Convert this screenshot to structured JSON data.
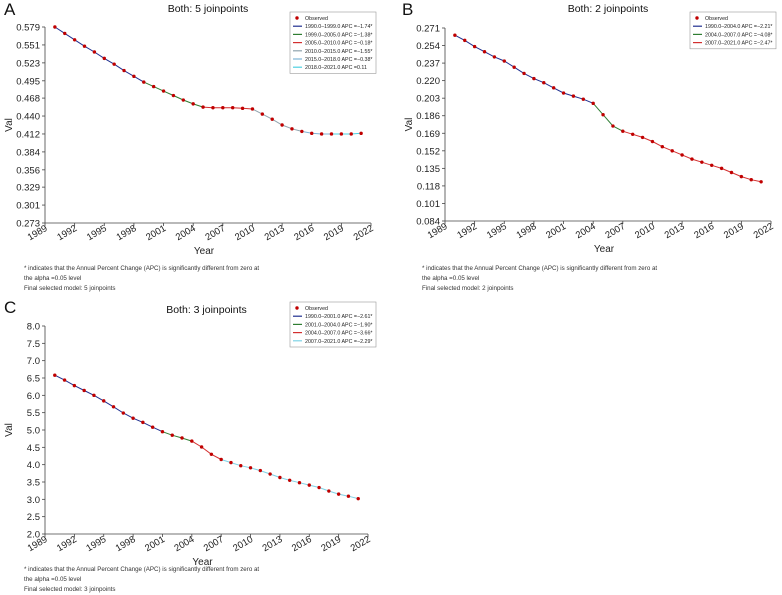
{
  "panels": [
    {
      "letter": "A",
      "note_1": "* indicates that the Annual Percent Change (APC) is significantly different from zero at",
      "note_2": "the alpha =0.05 level",
      "note_3": "Final selected model: 5 joinpoints"
    },
    {
      "letter": "B",
      "note_1": "* indicates that the Annual Percent Change (APC) is significantly different from zero at",
      "note_2": "the alpha =0.05 level",
      "note_3": "Final selected model: 2 joinpoints"
    },
    {
      "letter": "C",
      "note_1": "* indicates that the Annual Percent Change (APC) is significantly different from zero at",
      "note_2": "the alpha =0.05 level",
      "note_3": "Final selected model: 3 joinpoints"
    }
  ],
  "chart_data": [
    {
      "type": "line",
      "title": "Both: 5 joinpoints",
      "xlabel": "Year",
      "ylabel": "Val",
      "xlim": [
        1989,
        2022
      ],
      "xticks": [
        1989,
        1992,
        1995,
        1998,
        2001,
        2004,
        2007,
        2010,
        2013,
        2016,
        2019,
        2022
      ],
      "ylim": [
        0.273,
        0.579
      ],
      "yticks": [
        "0.273",
        "0.301",
        "0.329",
        "0.356",
        "0.384",
        "0.412",
        "0.440",
        "0.468",
        "0.495",
        "0.523",
        "0.551",
        "0.579"
      ],
      "legend_position": "top-right",
      "observed_label": "Observed",
      "observed_color": "#c00000",
      "x": [
        1990,
        1991,
        1992,
        1993,
        1994,
        1995,
        1996,
        1997,
        1998,
        1999,
        2000,
        2001,
        2002,
        2003,
        2004,
        2005,
        2006,
        2007,
        2008,
        2009,
        2010,
        2011,
        2012,
        2013,
        2014,
        2015,
        2016,
        2017,
        2018,
        2019,
        2020,
        2021
      ],
      "observed": [
        0.579,
        0.569,
        0.559,
        0.549,
        0.54,
        0.53,
        0.521,
        0.511,
        0.502,
        0.493,
        0.486,
        0.479,
        0.472,
        0.465,
        0.459,
        0.454,
        0.453,
        0.453,
        0.453,
        0.452,
        0.451,
        0.443,
        0.435,
        0.426,
        0.42,
        0.416,
        0.413,
        0.412,
        0.412,
        0.412,
        0.412,
        0.413
      ],
      "segments": [
        {
          "name": "1990.0–1999.0 APC =−1.74*",
          "color": "#1f2f8f",
          "from": 1990,
          "to": 1999
        },
        {
          "name": "1999.0–2005.0 APC =−1.38*",
          "color": "#2e7d32",
          "from": 1999,
          "to": 2005
        },
        {
          "name": "2005.0–2010.0 APC =−0.18*",
          "color": "#d32f2f",
          "from": 2005,
          "to": 2010
        },
        {
          "name": "2010.0–2015.0 APC =−1.55*",
          "color": "#90a4ae",
          "from": 2010,
          "to": 2015
        },
        {
          "name": "2015.0–2018.0 APC =−0.38*",
          "color": "#7fb3d5",
          "from": 2015,
          "to": 2018
        },
        {
          "name": "2018.0–2021.0 APC =0.11",
          "color": "#4dd0e1",
          "from": 2018,
          "to": 2021
        }
      ]
    },
    {
      "type": "line",
      "title": "Both: 2 joinpoints",
      "xlabel": "Year",
      "ylabel": "Val",
      "xlim": [
        1989,
        2022
      ],
      "xticks": [
        1989,
        1992,
        1995,
        1998,
        2001,
        2004,
        2007,
        2010,
        2013,
        2016,
        2019,
        2022
      ],
      "ylim": [
        0.084,
        0.271
      ],
      "yticks": [
        "0.084",
        "0.101",
        "0.118",
        "0.135",
        "0.152",
        "0.169",
        "0.186",
        "0.203",
        "0.220",
        "0.237",
        "0.254",
        "0.271"
      ],
      "legend_position": "top-right",
      "observed_label": "Observed",
      "observed_color": "#c00000",
      "x": [
        1990,
        1991,
        1992,
        1993,
        1994,
        1995,
        1996,
        1997,
        1998,
        1999,
        2000,
        2001,
        2002,
        2003,
        2004,
        2005,
        2006,
        2007,
        2008,
        2009,
        2010,
        2011,
        2012,
        2013,
        2014,
        2015,
        2016,
        2017,
        2018,
        2019,
        2020,
        2021
      ],
      "observed": [
        0.264,
        0.259,
        0.253,
        0.248,
        0.243,
        0.239,
        0.233,
        0.227,
        0.222,
        0.218,
        0.213,
        0.208,
        0.205,
        0.202,
        0.198,
        0.187,
        0.176,
        0.171,
        0.168,
        0.165,
        0.161,
        0.156,
        0.152,
        0.148,
        0.144,
        0.141,
        0.138,
        0.135,
        0.131,
        0.127,
        0.124,
        0.122
      ],
      "segments": [
        {
          "name": "1990.0–2004.0 APC =−2.21*",
          "color": "#1f2f8f",
          "from": 1990,
          "to": 2004
        },
        {
          "name": "2004.0–2007.0 APC =−4.08*",
          "color": "#2e7d32",
          "from": 2004,
          "to": 2007
        },
        {
          "name": "2007.0–2021.0 APC =−2.47*",
          "color": "#d32f2f",
          "from": 2007,
          "to": 2021
        }
      ]
    },
    {
      "type": "line",
      "title": "Both: 3 joinpoints",
      "xlabel": "Year",
      "ylabel": "Val",
      "xlim": [
        1989,
        2022
      ],
      "xticks": [
        1989,
        1992,
        1995,
        1998,
        2001,
        2004,
        2007,
        2010,
        2013,
        2016,
        2019,
        2022
      ],
      "ylim": [
        2.0,
        8.0
      ],
      "yticks": [
        "2.0",
        "2.5",
        "3.0",
        "3.5",
        "4.0",
        "4.5",
        "5.0",
        "5.5",
        "6.0",
        "6.5",
        "7.0",
        "7.5",
        "8.0"
      ],
      "legend_position": "top-right",
      "observed_label": "Observed",
      "observed_color": "#c00000",
      "x": [
        1990,
        1991,
        1992,
        1993,
        1994,
        1995,
        1996,
        1997,
        1998,
        1999,
        2000,
        2001,
        2002,
        2003,
        2004,
        2005,
        2006,
        2007,
        2008,
        2009,
        2010,
        2011,
        2012,
        2013,
        2014,
        2015,
        2016,
        2017,
        2018,
        2019,
        2020,
        2021
      ],
      "observed": [
        6.58,
        6.44,
        6.28,
        6.14,
        6.0,
        5.84,
        5.67,
        5.49,
        5.34,
        5.22,
        5.08,
        4.95,
        4.85,
        4.77,
        4.68,
        4.51,
        4.3,
        4.15,
        4.06,
        3.97,
        3.91,
        3.83,
        3.73,
        3.63,
        3.55,
        3.48,
        3.41,
        3.34,
        3.24,
        3.15,
        3.09,
        3.02
      ],
      "segments": [
        {
          "name": "1990.0–2001.0 APC =−2.61*",
          "color": "#1f2f8f",
          "from": 1990,
          "to": 2001
        },
        {
          "name": "2001.0–2004.0 APC =−1.90*",
          "color": "#2e7d32",
          "from": 2001,
          "to": 2004
        },
        {
          "name": "2004.0–2007.0 APC =−3.66*",
          "color": "#d32f2f",
          "from": 2004,
          "to": 2007
        },
        {
          "name": "2007.0–2021.0 APC =−2.29*",
          "color": "#7fd3e6",
          "from": 2007,
          "to": 2021
        }
      ]
    }
  ]
}
